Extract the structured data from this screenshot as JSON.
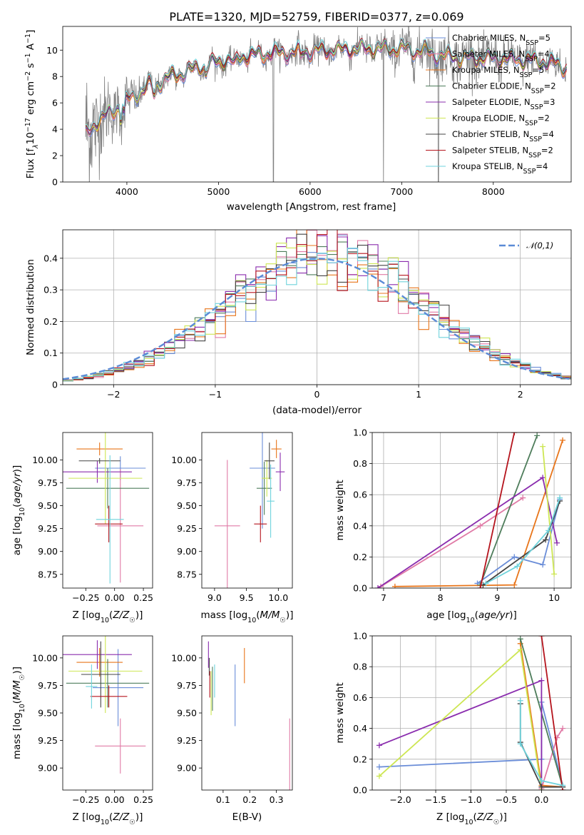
{
  "figure": {
    "title": "PLATE=1320, MJD=52759, FIBERID=0377, z=0.069"
  },
  "colors": {
    "Chabrier MILES": "#6a8dd8",
    "Salpeter MILES": "#e07aa6",
    "Kroupa MILES": "#e8751a",
    "Chabrier ELODIE": "#4e7d5b",
    "Salpeter ELODIE": "#8a2cae",
    "Kroupa ELODIE": "#cde653",
    "Chabrier STELIB": "#444444",
    "Salpeter STELIB": "#b5141d",
    "Kroupa STELIB": "#6fd3dc",
    "data": "#808080"
  },
  "chart_data": [
    {
      "id": "spectrum",
      "type": "line",
      "title": "PLATE=1320, MJD=52759, FIBERID=0377, z=0.069",
      "xlabel": "wavelength [Angstrom, rest frame]",
      "ylabel_main": "Flux [f",
      "ylabel_sub": "λ",
      "ylabel_rest": "10",
      "ylabel_exp1": "−17",
      "ylabel_mid": " erg cm",
      "ylabel_exp2": "−2",
      "ylabel_mid2": " s",
      "ylabel_exp3": "−1",
      "ylabel_mid3": " A",
      "ylabel_exp4": "−1",
      "ylabel_end": "]",
      "xlim": [
        3300,
        8850
      ],
      "ylim": [
        0,
        11.8
      ],
      "xticks": [
        4000,
        5000,
        6000,
        7000,
        8000
      ],
      "yticks": [
        0,
        2,
        4,
        6,
        8,
        10
      ],
      "grid": false,
      "legend_position": "right",
      "continuum_x": [
        3550,
        3700,
        3850,
        4000,
        4100,
        4250,
        4500,
        4750,
        5000,
        5250,
        5500,
        5750,
        6000,
        6250,
        6500,
        6750,
        7000,
        7250,
        7500,
        7750,
        8000,
        8250,
        8500,
        8800
      ],
      "continuum_y": [
        3.6,
        4.7,
        5.4,
        6.2,
        6.6,
        7.3,
        8.0,
        8.6,
        9.1,
        9.5,
        9.7,
        9.8,
        9.9,
        10.0,
        10.1,
        10.1,
        10.1,
        9.9,
        9.5,
        9.4,
        9.4,
        9.3,
        9.2,
        8.7
      ],
      "noise_amplitude": [
        4.5,
        3.0,
        2.0,
        1.6,
        1.2,
        0.9,
        0.7,
        0.7,
        0.8,
        0.7,
        0.7,
        0.9,
        0.9,
        0.9,
        1.0,
        1.1,
        1.4,
        1.6,
        1.7,
        1.5,
        1.4,
        1.3,
        1.2,
        1.0
      ],
      "spikes_down": [
        5600,
        6800,
        7400
      ],
      "series": [
        {
          "name": "Chabrier MILES",
          "nssp": "5"
        },
        {
          "name": "Salpeter MILES",
          "nssp": "4"
        },
        {
          "name": "Kroupa MILES",
          "nssp": "5"
        },
        {
          "name": "Chabrier ELODIE",
          "nssp": "2"
        },
        {
          "name": "Salpeter ELODIE",
          "nssp": "3"
        },
        {
          "name": "Kroupa ELODIE",
          "nssp": "2"
        },
        {
          "name": "Chabrier STELIB",
          "nssp": "4"
        },
        {
          "name": "Salpeter STELIB",
          "nssp": "2"
        },
        {
          "name": "Kroupa STELIB",
          "nssp": "4"
        }
      ]
    },
    {
      "id": "residuals",
      "type": "line",
      "xlabel": "(data-model)/error",
      "ylabel": "Normed distribution",
      "xlim": [
        -2.5,
        2.5
      ],
      "ylim": [
        0,
        0.49
      ],
      "xticks": [
        -2,
        -1,
        0,
        1,
        2
      ],
      "yticks": [
        0.0,
        0.1,
        0.2,
        0.3,
        0.4
      ],
      "grid": true,
      "legend_position": "top-right",
      "gaussian_label": "𝒩(0,1)",
      "bin_width": 0.1,
      "base_mean": 0.1,
      "base_sigma": 0.98
    },
    {
      "id": "age_vs_Z",
      "type": "scatter",
      "xlabel": "Z [log10(Z/Z☉)]",
      "ylabel": "age  [log10(age/yr)]",
      "xlim": [
        -0.45,
        0.33
      ],
      "ylim": [
        8.6,
        10.3
      ],
      "xticks": [
        -0.25,
        0.0,
        0.25
      ],
      "yticks": [
        8.75,
        9.0,
        9.25,
        9.5,
        9.75,
        10.0
      ],
      "points": [
        {
          "series": "Chabrier MILES",
          "x": 0.05,
          "xerr": 0.22,
          "y": 9.91,
          "yerr": 0.13
        },
        {
          "series": "Salpeter MILES",
          "x": 0.05,
          "xerr": 0.2,
          "y": 9.28,
          "yerr": 0.62
        },
        {
          "series": "Kroupa MILES",
          "x": -0.13,
          "xerr": 0.2,
          "y": 10.12,
          "yerr": 0.07
        },
        {
          "series": "Chabrier ELODIE",
          "x": -0.06,
          "xerr": 0.36,
          "y": 9.69,
          "yerr": 0.22
        },
        {
          "series": "Salpeter ELODIE",
          "x": -0.15,
          "xerr": 0.3,
          "y": 9.87,
          "yerr": 0.12
        },
        {
          "series": "Kroupa ELODIE",
          "x": -0.08,
          "xerr": 0.32,
          "y": 9.8,
          "yerr": 0.5
        },
        {
          "series": "Chabrier STELIB",
          "x": -0.13,
          "xerr": 0.18,
          "y": 9.99,
          "yerr": 0.03
        },
        {
          "series": "Salpeter STELIB",
          "x": -0.05,
          "xerr": 0.12,
          "y": 9.3,
          "yerr": 0.2
        },
        {
          "series": "Kroupa STELIB",
          "x": -0.04,
          "xerr": 0.12,
          "y": 9.35,
          "yerr": 0.7
        }
      ]
    },
    {
      "id": "age_vs_mass",
      "type": "scatter",
      "xlabel": "mass [log10(M/M☉)]",
      "ylabel": "",
      "xlim": [
        8.8,
        10.22
      ],
      "ylim": [
        8.6,
        10.3
      ],
      "xticks": [
        9.0,
        9.5,
        10.0
      ],
      "yticks": [
        8.75,
        9.0,
        9.25,
        9.5,
        9.75,
        10.0
      ],
      "points": [
        {
          "series": "Chabrier MILES",
          "x": 9.75,
          "xerr": 0.2,
          "y": 9.91,
          "yerr": 0.66
        },
        {
          "series": "Salpeter MILES",
          "x": 9.2,
          "xerr": 0.2,
          "y": 9.28,
          "yerr": 0.72
        },
        {
          "series": "Kroupa MILES",
          "x": 9.97,
          "xerr": 0.08,
          "y": 10.12,
          "yerr": 0.1
        },
        {
          "series": "Chabrier ELODIE",
          "x": 9.78,
          "xerr": 0.12,
          "y": 9.69,
          "yerr": 0.29
        },
        {
          "series": "Salpeter ELODIE",
          "x": 10.03,
          "xerr": 0.07,
          "y": 9.87,
          "yerr": 0.21
        },
        {
          "series": "Kroupa ELODIE",
          "x": 9.82,
          "xerr": 0.08,
          "y": 9.8,
          "yerr": 0.2
        },
        {
          "series": "Chabrier STELIB",
          "x": 9.86,
          "xerr": 0.08,
          "y": 9.99,
          "yerr": 0.2
        },
        {
          "series": "Salpeter STELIB",
          "x": 9.72,
          "xerr": 0.1,
          "y": 9.3,
          "yerr": 0.2
        },
        {
          "series": "Kroupa STELIB",
          "x": 9.88,
          "xerr": 0.06,
          "y": 9.55,
          "yerr": 0.4
        }
      ]
    },
    {
      "id": "weight_vs_age",
      "type": "line",
      "xlabel": "age  [log10(age/yr)]",
      "ylabel": "mass weight",
      "xlim": [
        6.8,
        10.3
      ],
      "ylim": [
        0.0,
        1.0
      ],
      "xticks": [
        7,
        8,
        9,
        10
      ],
      "yticks": [
        0.0,
        0.2,
        0.4,
        0.6,
        0.8,
        1.0
      ],
      "grid": true,
      "series": [
        {
          "name": "Chabrier MILES",
          "x": [
            8.65,
            9.3,
            9.8,
            10.1
          ],
          "y": [
            0.03,
            0.2,
            0.15,
            0.57
          ]
        },
        {
          "name": "Salpeter MILES",
          "x": [
            6.95,
            8.7,
            9.45
          ],
          "y": [
            0.01,
            0.4,
            0.58
          ]
        },
        {
          "name": "Kroupa MILES",
          "x": [
            7.2,
            9.3,
            10.15
          ],
          "y": [
            0.01,
            0.02,
            0.95
          ]
        },
        {
          "name": "Chabrier ELODIE",
          "x": [
            8.7,
            9.7
          ],
          "y": [
            0.02,
            0.98
          ]
        },
        {
          "name": "Salpeter ELODIE",
          "x": [
            6.9,
            9.8,
            10.05
          ],
          "y": [
            0.0,
            0.71,
            0.29
          ]
        },
        {
          "name": "Kroupa ELODIE",
          "x": [
            9.8,
            10.0
          ],
          "y": [
            0.91,
            0.09
          ]
        },
        {
          "name": "Chabrier STELIB",
          "x": [
            8.75,
            9.85,
            10.1
          ],
          "y": [
            0.02,
            0.31,
            0.56
          ]
        },
        {
          "name": "Salpeter STELIB",
          "x": [
            8.7,
            9.3
          ],
          "y": [
            0.0,
            1.0
          ]
        },
        {
          "name": "Kroupa STELIB",
          "x": [
            8.8,
            9.35,
            9.9,
            10.1
          ],
          "y": [
            0.03,
            0.14,
            0.37,
            0.58
          ]
        }
      ]
    },
    {
      "id": "mass_vs_Z",
      "type": "scatter",
      "xlabel": "Z [log10(Z/Z☉)]",
      "ylabel": "mass [log10(M/M☉)]",
      "xlim": [
        -0.45,
        0.33
      ],
      "ylim": [
        8.8,
        10.2
      ],
      "xticks": [
        -0.25,
        0.0,
        0.25
      ],
      "yticks": [
        9.0,
        9.25,
        9.5,
        9.75,
        10.0
      ],
      "points": [
        {
          "series": "Chabrier MILES",
          "x": 0.03,
          "xerr": 0.22,
          "y": 9.73,
          "yerr": 0.35
        },
        {
          "series": "Salpeter MILES",
          "x": 0.05,
          "xerr": 0.22,
          "y": 9.2,
          "yerr": 0.25
        },
        {
          "series": "Kroupa MILES",
          "x": -0.13,
          "xerr": 0.2,
          "y": 9.96,
          "yerr": 0.13
        },
        {
          "series": "Chabrier ELODIE",
          "x": -0.06,
          "xerr": 0.36,
          "y": 9.77,
          "yerr": 0.22
        },
        {
          "series": "Salpeter ELODIE",
          "x": -0.15,
          "xerr": 0.3,
          "y": 10.03,
          "yerr": 0.13
        },
        {
          "series": "Kroupa ELODIE",
          "x": -0.08,
          "xerr": 0.32,
          "y": 9.88,
          "yerr": 0.38
        },
        {
          "series": "Chabrier STELIB",
          "x": -0.12,
          "xerr": 0.17,
          "y": 9.85,
          "yerr": 0.3
        },
        {
          "series": "Salpeter STELIB",
          "x": -0.05,
          "xerr": 0.16,
          "y": 9.65,
          "yerr": 0.1
        },
        {
          "series": "Kroupa STELIB",
          "x": -0.2,
          "xerr": 0.05,
          "y": 9.74,
          "yerr": 0.2
        }
      ]
    },
    {
      "id": "mass_vs_ebv",
      "type": "scatter",
      "xlabel": "E(B-V)",
      "ylabel": "",
      "xlim": [
        0.02,
        0.36
      ],
      "ylim": [
        8.8,
        10.2
      ],
      "xticks": [
        0.1,
        0.2,
        0.3
      ],
      "yticks": [
        9.0,
        9.25,
        9.5,
        9.75,
        10.0
      ],
      "points": [
        {
          "series": "Chabrier MILES",
          "x": 0.145,
          "xerr": 0.0,
          "y": 9.66,
          "yerr": 0.28
        },
        {
          "series": "Salpeter MILES",
          "x": 0.35,
          "xerr": 0.0,
          "y": 9.05,
          "yerr": 0.4
        },
        {
          "series": "Kroupa MILES",
          "x": 0.18,
          "xerr": 0.0,
          "y": 9.93,
          "yerr": 0.16
        },
        {
          "series": "Chabrier ELODIE",
          "x": 0.06,
          "xerr": 0.0,
          "y": 9.72,
          "yerr": 0.2
        },
        {
          "series": "Salpeter ELODIE",
          "x": 0.045,
          "xerr": 0.0,
          "y": 10.03,
          "yerr": 0.12
        },
        {
          "series": "Kroupa ELODIE",
          "x": 0.055,
          "xerr": 0.0,
          "y": 9.68,
          "yerr": 0.2
        },
        {
          "series": "Chabrier STELIB",
          "x": 0.048,
          "xerr": 0.0,
          "y": 9.92,
          "yerr": 0.08
        },
        {
          "series": "Salpeter STELIB",
          "x": 0.05,
          "xerr": 0.0,
          "y": 9.76,
          "yerr": 0.12
        },
        {
          "series": "Kroupa STELIB",
          "x": 0.068,
          "xerr": 0.0,
          "y": 9.79,
          "yerr": 0.15
        }
      ]
    },
    {
      "id": "weight_vs_Z",
      "type": "line",
      "xlabel": "Z [log10(Z/Z☉)]",
      "ylabel": "mass weight",
      "xlim": [
        -2.4,
        0.42
      ],
      "ylim": [
        0.0,
        1.0
      ],
      "xticks": [
        -2.0,
        -1.5,
        -1.0,
        -0.5,
        0.0
      ],
      "yticks": [
        0.0,
        0.2,
        0.4,
        0.6,
        0.8,
        1.0
      ],
      "grid": true,
      "series": [
        {
          "name": "Chabrier MILES",
          "x": [
            -2.3,
            0.0,
            0.0,
            0.3
          ],
          "y": [
            0.15,
            0.2,
            0.57,
            0.03
          ]
        },
        {
          "name": "Salpeter MILES",
          "x": [
            0.0,
            0.22,
            0.3
          ],
          "y": [
            0.01,
            0.34,
            0.4
          ]
        },
        {
          "name": "Kroupa MILES",
          "x": [
            -0.3,
            0.0,
            0.3
          ],
          "y": [
            0.95,
            0.03,
            0.02
          ]
        },
        {
          "name": "Chabrier ELODIE",
          "x": [
            -0.3,
            0.3
          ],
          "y": [
            0.98,
            0.02
          ]
        },
        {
          "name": "Salpeter ELODIE",
          "x": [
            -2.3,
            0.0,
            0.0
          ],
          "y": [
            0.29,
            0.71,
            0.0
          ]
        },
        {
          "name": "Kroupa ELODIE",
          "x": [
            -2.3,
            -0.3,
            0.0
          ],
          "y": [
            0.09,
            0.91,
            0.0
          ]
        },
        {
          "name": "Chabrier STELIB",
          "x": [
            -0.3,
            -0.3,
            0.0,
            0.3
          ],
          "y": [
            0.56,
            0.31,
            0.02,
            0.02
          ]
        },
        {
          "name": "Salpeter STELIB",
          "x": [
            0.0,
            0.3
          ],
          "y": [
            1.0,
            0.0
          ]
        },
        {
          "name": "Kroupa STELIB",
          "x": [
            -0.3,
            -0.3,
            0.0,
            0.3
          ],
          "y": [
            0.58,
            0.3,
            0.06,
            0.03
          ]
        }
      ]
    }
  ]
}
